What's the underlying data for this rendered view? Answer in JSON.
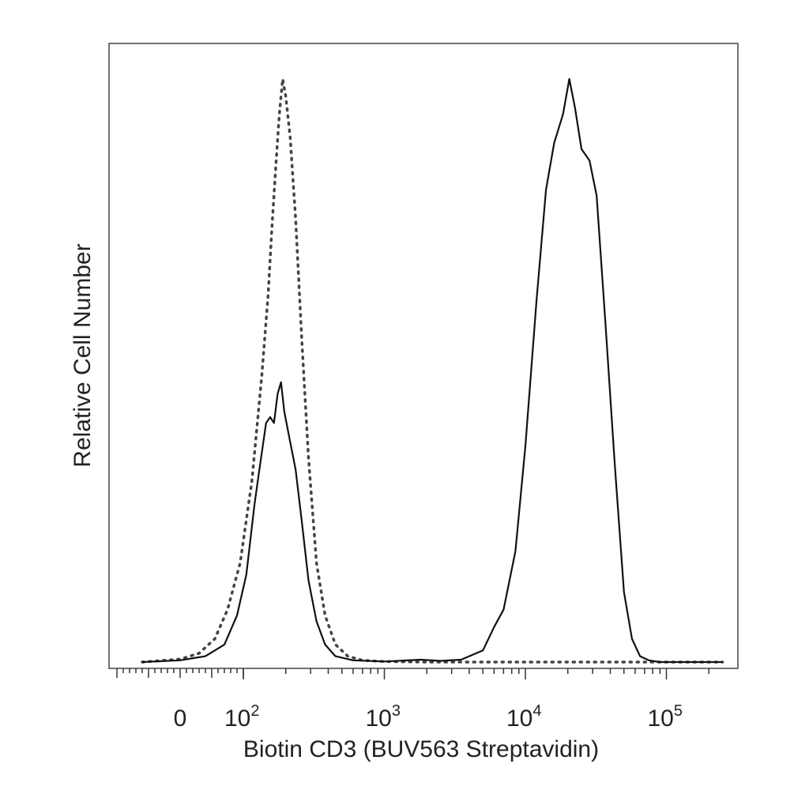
{
  "chart_data": {
    "type": "line",
    "title": "",
    "xlabel": "Biotin CD3 (BUV563 Streptavidin)",
    "ylabel": "Relative Cell Number",
    "x_scale": "biexponential",
    "x_ticks": [
      {
        "value": 0,
        "base": "0",
        "exp": ""
      },
      {
        "value": 100,
        "base": "10",
        "exp": "2"
      },
      {
        "value": 1000,
        "base": "10",
        "exp": "3"
      },
      {
        "value": 10000,
        "base": "10",
        "exp": "4"
      },
      {
        "value": 100000,
        "base": "10",
        "exp": "5"
      }
    ],
    "y_ticks": [],
    "ylim": [
      0,
      1
    ],
    "legend": "none",
    "grid": false,
    "series": [
      {
        "style": "dotted",
        "color": "#444444",
        "points": [
          [
            -60,
            0
          ],
          [
            0,
            0.005
          ],
          [
            30,
            0.015
          ],
          [
            55,
            0.04
          ],
          [
            75,
            0.09
          ],
          [
            95,
            0.17
          ],
          [
            115,
            0.31
          ],
          [
            135,
            0.49
          ],
          [
            150,
            0.63
          ],
          [
            160,
            0.75
          ],
          [
            170,
            0.85
          ],
          [
            180,
            0.94
          ],
          [
            190,
            1.0
          ],
          [
            200,
            0.97
          ],
          [
            215,
            0.9
          ],
          [
            235,
            0.76
          ],
          [
            260,
            0.55
          ],
          [
            290,
            0.35
          ],
          [
            330,
            0.17
          ],
          [
            380,
            0.08
          ],
          [
            450,
            0.03
          ],
          [
            550,
            0.01
          ],
          [
            700,
            0.003
          ],
          [
            1000,
            0.001
          ],
          [
            2000,
            0.0
          ],
          [
            10000,
            0.0
          ],
          [
            100000,
            0.0
          ],
          [
            250000,
            0.0
          ]
        ]
      },
      {
        "style": "solid",
        "color": "#111111",
        "points": [
          [
            -60,
            0
          ],
          [
            0,
            0.003
          ],
          [
            40,
            0.01
          ],
          [
            70,
            0.03
          ],
          [
            90,
            0.08
          ],
          [
            105,
            0.15
          ],
          [
            120,
            0.27
          ],
          [
            130,
            0.33
          ],
          [
            145,
            0.41
          ],
          [
            155,
            0.42
          ],
          [
            165,
            0.41
          ],
          [
            175,
            0.46
          ],
          [
            185,
            0.48
          ],
          [
            195,
            0.43
          ],
          [
            210,
            0.39
          ],
          [
            235,
            0.33
          ],
          [
            260,
            0.24
          ],
          [
            290,
            0.14
          ],
          [
            330,
            0.07
          ],
          [
            380,
            0.03
          ],
          [
            450,
            0.01
          ],
          [
            600,
            0.003
          ],
          [
            1000,
            0.001
          ],
          [
            1800,
            0.004
          ],
          [
            2500,
            0.002
          ],
          [
            3500,
            0.004
          ],
          [
            5000,
            0.02
          ],
          [
            6000,
            0.06
          ],
          [
            7000,
            0.09
          ],
          [
            8500,
            0.19
          ],
          [
            10000,
            0.37
          ],
          [
            12000,
            0.62
          ],
          [
            14000,
            0.81
          ],
          [
            16000,
            0.89
          ],
          [
            18500,
            0.94
          ],
          [
            20500,
            1.0
          ],
          [
            22500,
            0.95
          ],
          [
            25000,
            0.88
          ],
          [
            28500,
            0.86
          ],
          [
            32000,
            0.8
          ],
          [
            37000,
            0.58
          ],
          [
            43000,
            0.34
          ],
          [
            50000,
            0.12
          ],
          [
            57000,
            0.04
          ],
          [
            65000,
            0.01
          ],
          [
            75000,
            0.003
          ],
          [
            90000,
            0.0
          ],
          [
            120000,
            0.0
          ],
          [
            250000,
            0.0
          ]
        ]
      }
    ]
  }
}
